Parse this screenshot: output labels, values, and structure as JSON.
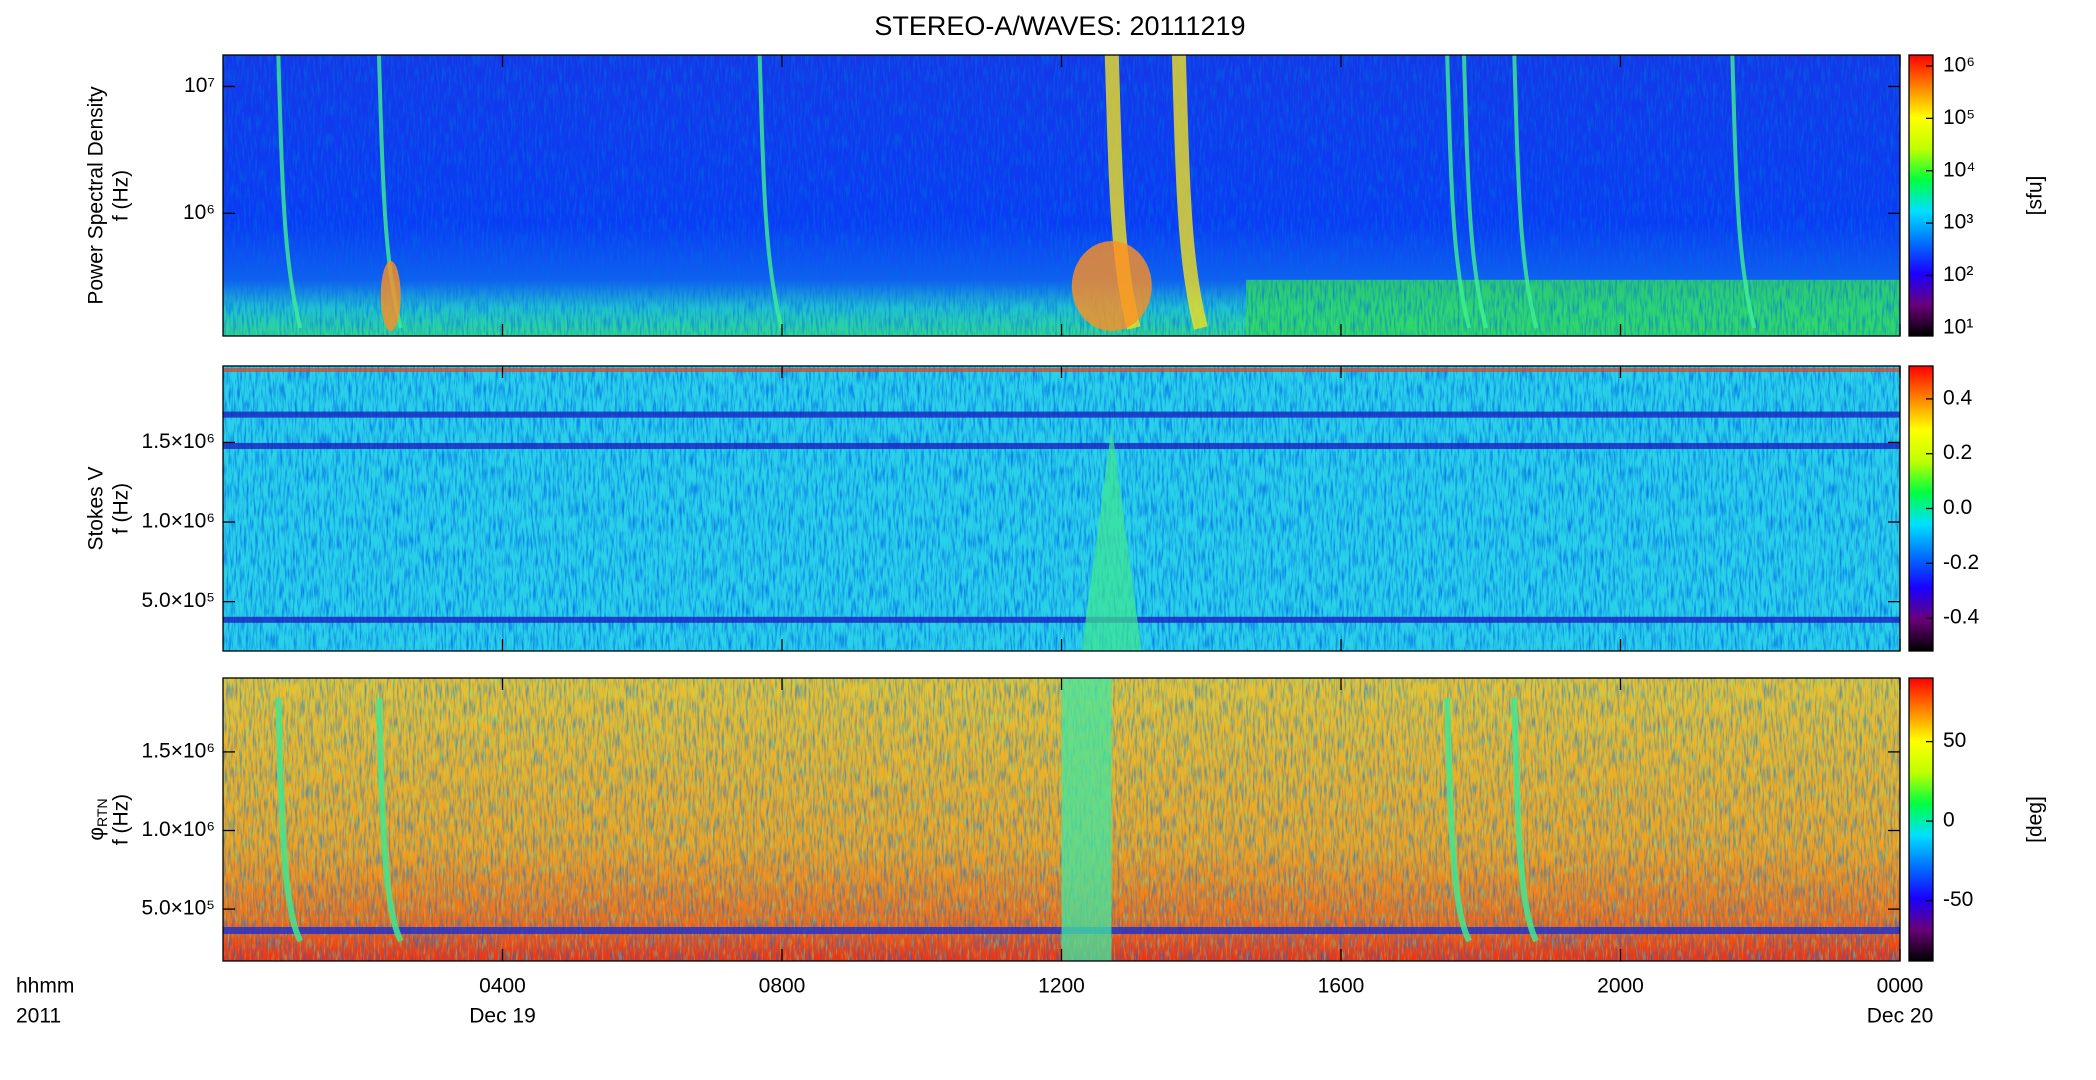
{
  "figure": {
    "title": "STEREO-A/WAVES: 20111219",
    "x_label_lines": [
      "hhmm",
      "2011"
    ],
    "xlim": [
      0,
      24
    ],
    "xticks": [
      {
        "value": 4,
        "label": "0400"
      },
      {
        "value": 8,
        "label": "0800"
      },
      {
        "value": 12,
        "label": "1200"
      },
      {
        "value": 16,
        "label": "1600"
      },
      {
        "value": 20,
        "label": "2000"
      },
      {
        "value": 24,
        "label": "0000"
      }
    ],
    "date_ticks": [
      {
        "value": 4,
        "label": "Dec 19"
      },
      {
        "value": 24,
        "label": "Dec 20"
      }
    ],
    "colormap": [
      "#000000",
      "#6a007a",
      "#1a00ff",
      "#0070ff",
      "#00e0ff",
      "#00ff40",
      "#c0ff00",
      "#ffff00",
      "#ff8000",
      "#ff0000"
    ]
  },
  "chart_data": [
    {
      "type": "heatmap",
      "y_label_lines": [
        "Power Spectral Density",
        "f (Hz)"
      ],
      "log_y": true,
      "ylim": [
        108000,
        17700000
      ],
      "yticks": [
        {
          "value": 1000000,
          "label": "10⁶"
        },
        {
          "value": 10000000,
          "label": "10⁷"
        }
      ],
      "colorbar": {
        "label": "[sfu]",
        "log": true,
        "lim": [
          7,
          1620000
        ],
        "ticks": [
          {
            "value": 10,
            "label": "10¹"
          },
          {
            "value": 100,
            "label": "10²"
          },
          {
            "value": 1000,
            "label": "10³"
          },
          {
            "value": 10000,
            "label": "10⁴"
          },
          {
            "value": 100000,
            "label": "10⁵"
          },
          {
            "value": 1000000,
            "label": "10⁶"
          }
        ]
      }
    },
    {
      "type": "heatmap",
      "y_label_lines": [
        "Stokes V",
        "f (Hz)"
      ],
      "log_y": false,
      "ylim": [
        190000,
        1980000
      ],
      "yticks": [
        {
          "value": 500000,
          "label": "5.0×10⁵"
        },
        {
          "value": 1000000,
          "label": "1.0×10⁶"
        },
        {
          "value": 1500000,
          "label": "1.5×10⁶"
        }
      ],
      "colorbar": {
        "label": "",
        "log": false,
        "lim": [
          -0.52,
          0.52
        ],
        "ticks": [
          -0.4,
          -0.2,
          {
            "value": 0,
            "label": "0.0"
          },
          0.2,
          0.4
        ]
      }
    },
    {
      "type": "heatmap",
      "y_label_lines": [
        {
          "text": "φ",
          "sub": "RTN"
        },
        "f (Hz)"
      ],
      "log_y": false,
      "ylim": [
        170000,
        1970000
      ],
      "yticks": [
        {
          "value": 500000,
          "label": "5.0×10⁵"
        },
        {
          "value": 1000000,
          "label": "1.0×10⁶"
        },
        {
          "value": 1500000,
          "label": "1.5×10⁶"
        }
      ],
      "colorbar": {
        "label": "[deg]",
        "log": false,
        "lim": [
          -88,
          90
        ],
        "ticks": [
          -50,
          0,
          50
        ]
      }
    }
  ]
}
